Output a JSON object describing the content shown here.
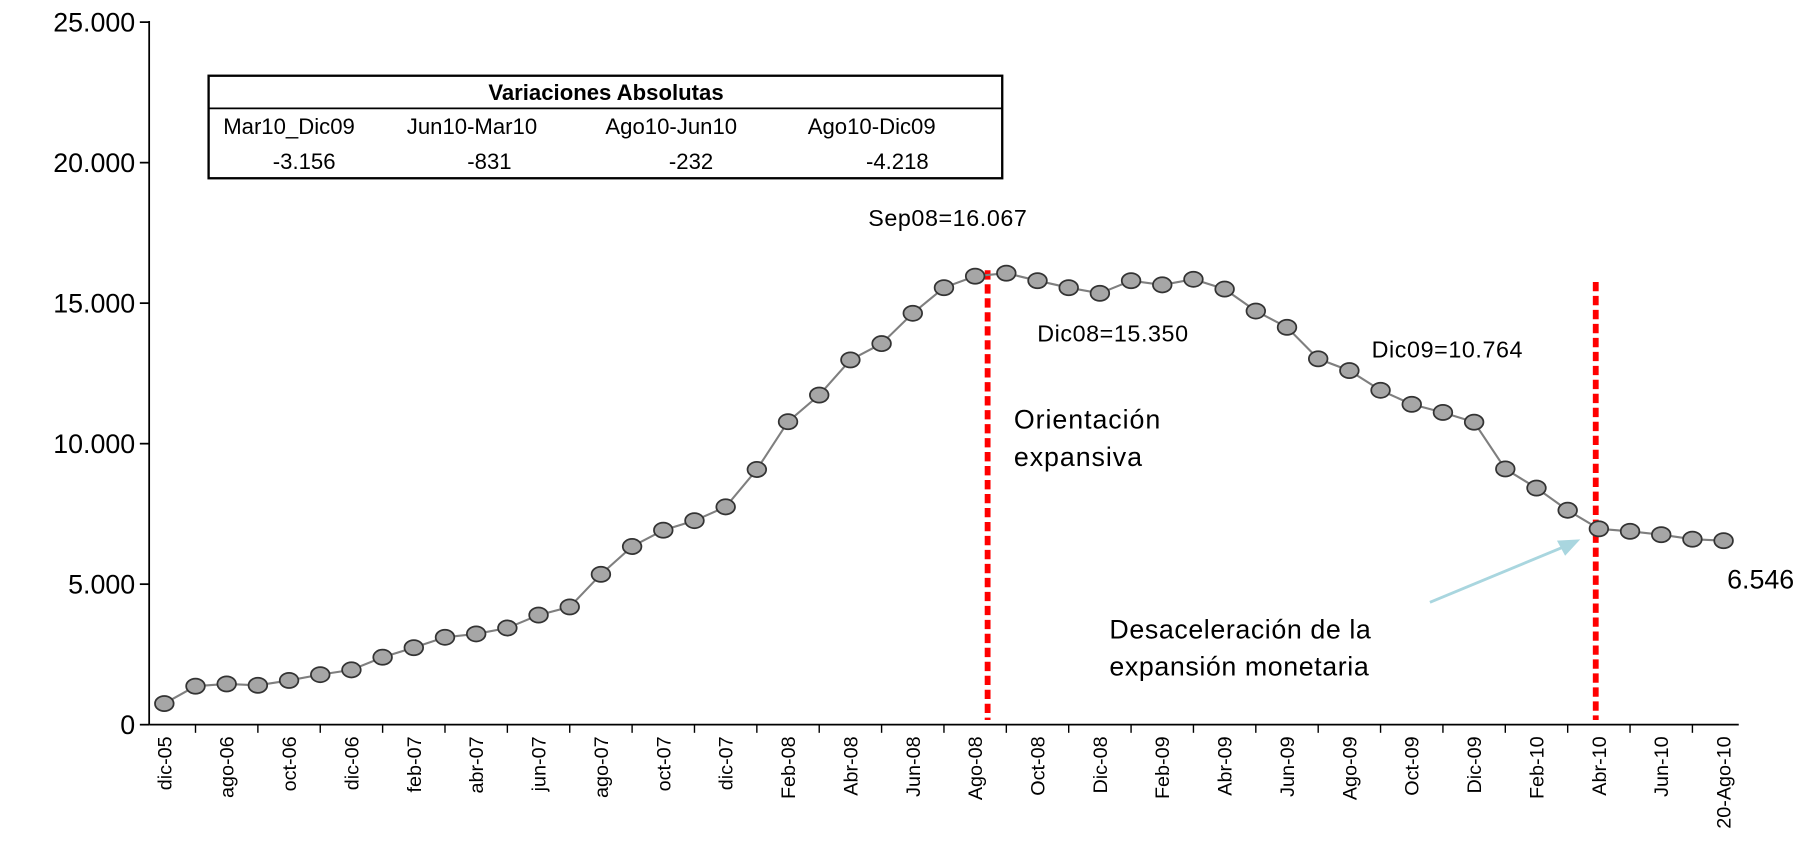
{
  "chart_data": {
    "type": "line",
    "categories": [
      "dic-05",
      null,
      "ago-06",
      null,
      "oct-06",
      null,
      "dic-06",
      null,
      "feb-07",
      null,
      "abr-07",
      null,
      "jun-07",
      null,
      "ago-07",
      null,
      "oct-07",
      null,
      "dic-07",
      null,
      "Feb-08",
      null,
      "Abr-08",
      null,
      "Jun-08",
      null,
      "Ago-08",
      null,
      "Oct-08",
      null,
      "Dic-08",
      null,
      "Feb-09",
      null,
      "Abr-09",
      null,
      "Jun-09",
      null,
      "Ago-09",
      null,
      "Oct-09",
      null,
      "Dic-09",
      null,
      "Feb-10",
      null,
      "Abr-10",
      null,
      "Jun-10",
      null,
      "20-Ago-10"
    ],
    "values": [
      750,
      1370,
      1450,
      1400,
      1575,
      1780,
      1950,
      2400,
      2740,
      3110,
      3230,
      3440,
      3900,
      4190,
      5350,
      6340,
      6920,
      7260,
      7750,
      9080,
      10780,
      11730,
      12980,
      13560,
      14640,
      15550,
      15960,
      16067,
      15800,
      15550,
      15350,
      15800,
      15650,
      15850,
      15500,
      14720,
      14140,
      13020,
      12600,
      11900,
      11400,
      11110,
      10764,
      9100,
      8420,
      7630,
      6970,
      6880,
      6760,
      6600,
      6546
    ],
    "color": "#a6a6a6",
    "line_color": "#7f7f7f",
    "ylim": [
      0,
      25000
    ],
    "yticks": [
      0,
      {
        "value": 5000,
        "label": "5.000"
      },
      {
        "value": 10000,
        "label": "10.000"
      },
      {
        "value": 15000,
        "label": "15.000"
      },
      {
        "value": 20000,
        "label": "20.000"
      },
      {
        "value": 25000,
        "label": "25.000"
      }
    ],
    "annotations": {
      "sep08": "Sep08=16.067",
      "dic08": "Dic08=15.350",
      "dic09": "Dic09=10.764",
      "last": "6.546",
      "orientacion": [
        "Orientación",
        "expansiva"
      ],
      "desaceleracion": [
        "Desaceleración de la",
        "expansión monetaria"
      ]
    },
    "inset_table": {
      "title": "Variaciones Absolutas",
      "headers": [
        "Mar10_Dic09",
        "Jun10-Mar10",
        "Ago10-Jun10",
        "Ago10-Dic09"
      ],
      "values": [
        "-3.156",
        "-831",
        "-232",
        "-4.218"
      ]
    }
  }
}
